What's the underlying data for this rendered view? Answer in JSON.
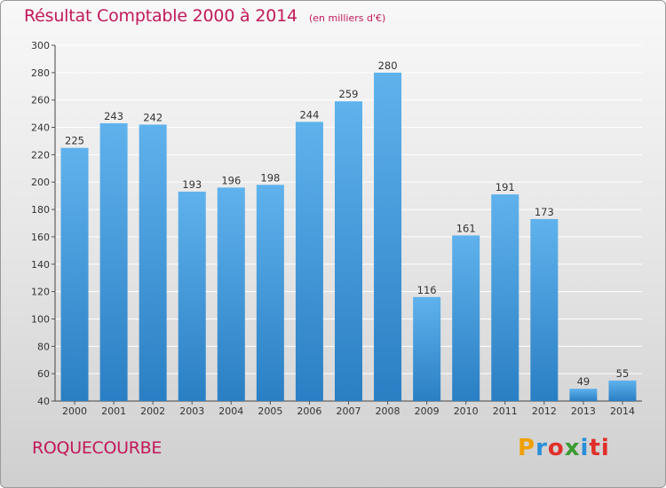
{
  "header": {
    "title": "Résultat Comptable 2000 à 2014",
    "unit": "(en milliers d'€)"
  },
  "footer": {
    "commune": "ROQUECOURBE",
    "logo_letters": [
      "P",
      "r",
      "o",
      "x",
      "i",
      "t",
      "i"
    ],
    "logo_colors": [
      "#f0a000",
      "#2a8fd8",
      "#e0302a",
      "#3a9a30",
      "#2a8fd8",
      "#e0302a",
      "#e0302a"
    ]
  },
  "colors": {
    "title": "#c2185b",
    "bar_light": "#5fb2ec",
    "bar_dark": "#2a7fc4",
    "grid": "#ffffff"
  },
  "chart_data": {
    "type": "bar",
    "title": "Résultat Comptable 2000 à 2014",
    "unit": "(en milliers d'€)",
    "xlabel": "",
    "ylabel": "",
    "categories": [
      "2000",
      "2001",
      "2002",
      "2003",
      "2004",
      "2005",
      "2006",
      "2007",
      "2008",
      "2009",
      "2010",
      "2011",
      "2012",
      "2013",
      "2014"
    ],
    "values": [
      225,
      243,
      242,
      193,
      196,
      198,
      244,
      259,
      280,
      116,
      161,
      191,
      173,
      49,
      55
    ],
    "ylim": [
      40,
      300
    ],
    "yticks": [
      40,
      60,
      80,
      100,
      120,
      140,
      160,
      180,
      200,
      220,
      240,
      260,
      280,
      300
    ],
    "grid": true
  }
}
